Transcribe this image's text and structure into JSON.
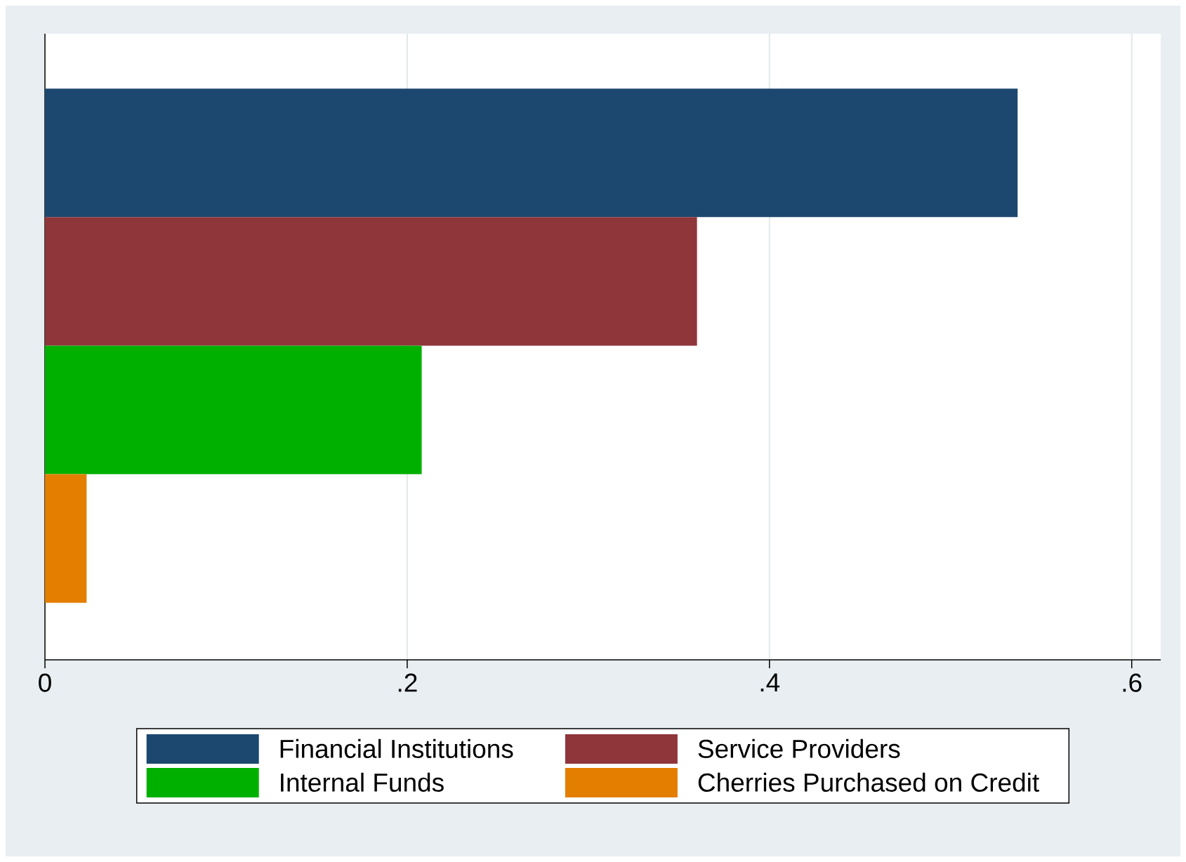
{
  "chart_data": {
    "type": "bar",
    "orientation": "horizontal",
    "categories": [
      null
    ],
    "series": [
      {
        "name": "Financial Institutions",
        "color": "#1c4870",
        "values": [
          0.537
        ]
      },
      {
        "name": "Service Providers",
        "color": "#8f363b",
        "values": [
          0.36
        ]
      },
      {
        "name": "Internal Funds",
        "color": "#00b000",
        "values": [
          0.208
        ]
      },
      {
        "name": "Cherries Purchased on Credit",
        "color": "#e37e00",
        "values": [
          0.023
        ]
      }
    ],
    "xlim": [
      0,
      0.616
    ],
    "xticks": [
      0,
      {
        "value": 0.2,
        "label": ".2"
      },
      {
        "value": 0.4,
        "label": ".4"
      },
      {
        "value": 0.6,
        "label": ".6"
      }
    ],
    "grid": "x",
    "legend": "bottom"
  }
}
